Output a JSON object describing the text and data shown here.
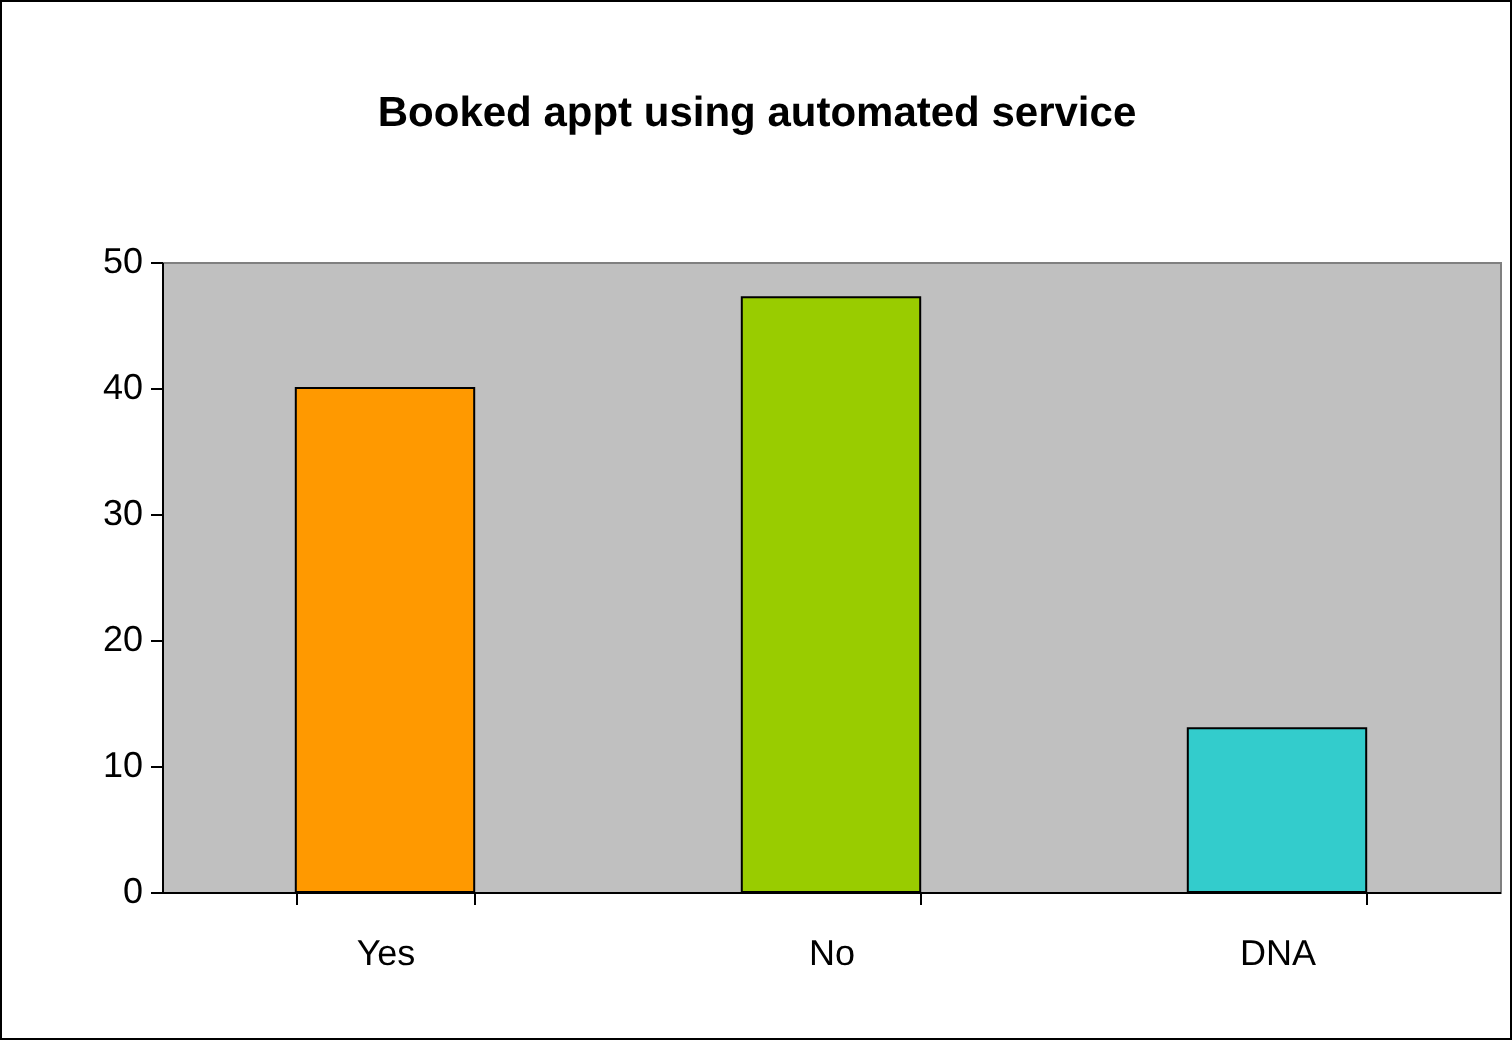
{
  "chart_data": {
    "type": "bar",
    "title": "Booked appt using automated service",
    "categories": [
      "Yes",
      "No",
      "DNA"
    ],
    "values": [
      40,
      47.2,
      13
    ],
    "colors": [
      "#ff9900",
      "#99cc00",
      "#33cccc"
    ],
    "ylim": [
      0,
      50
    ],
    "yticks": [
      0,
      10,
      20,
      30,
      40,
      50
    ],
    "grid": false
  }
}
